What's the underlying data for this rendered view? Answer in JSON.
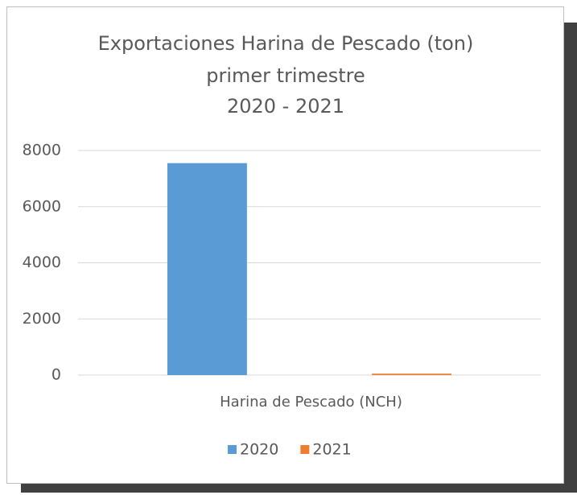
{
  "chart_data": {
    "type": "bar",
    "title": [
      "Exportaciones Harina de Pescado (ton)",
      "primer trimestre",
      "2020 - 2021"
    ],
    "categories": [
      "Harina de Pescado (NCH)"
    ],
    "series": [
      {
        "name": "2020",
        "color": "#5b9bd5",
        "values": [
          7550
        ]
      },
      {
        "name": "2021",
        "color": "#ed7d31",
        "values": [
          50
        ]
      }
    ],
    "ylim": [
      0,
      8000
    ],
    "yticks": [
      0,
      2000,
      4000,
      6000,
      8000
    ],
    "grid": true,
    "legend": "bottom"
  }
}
